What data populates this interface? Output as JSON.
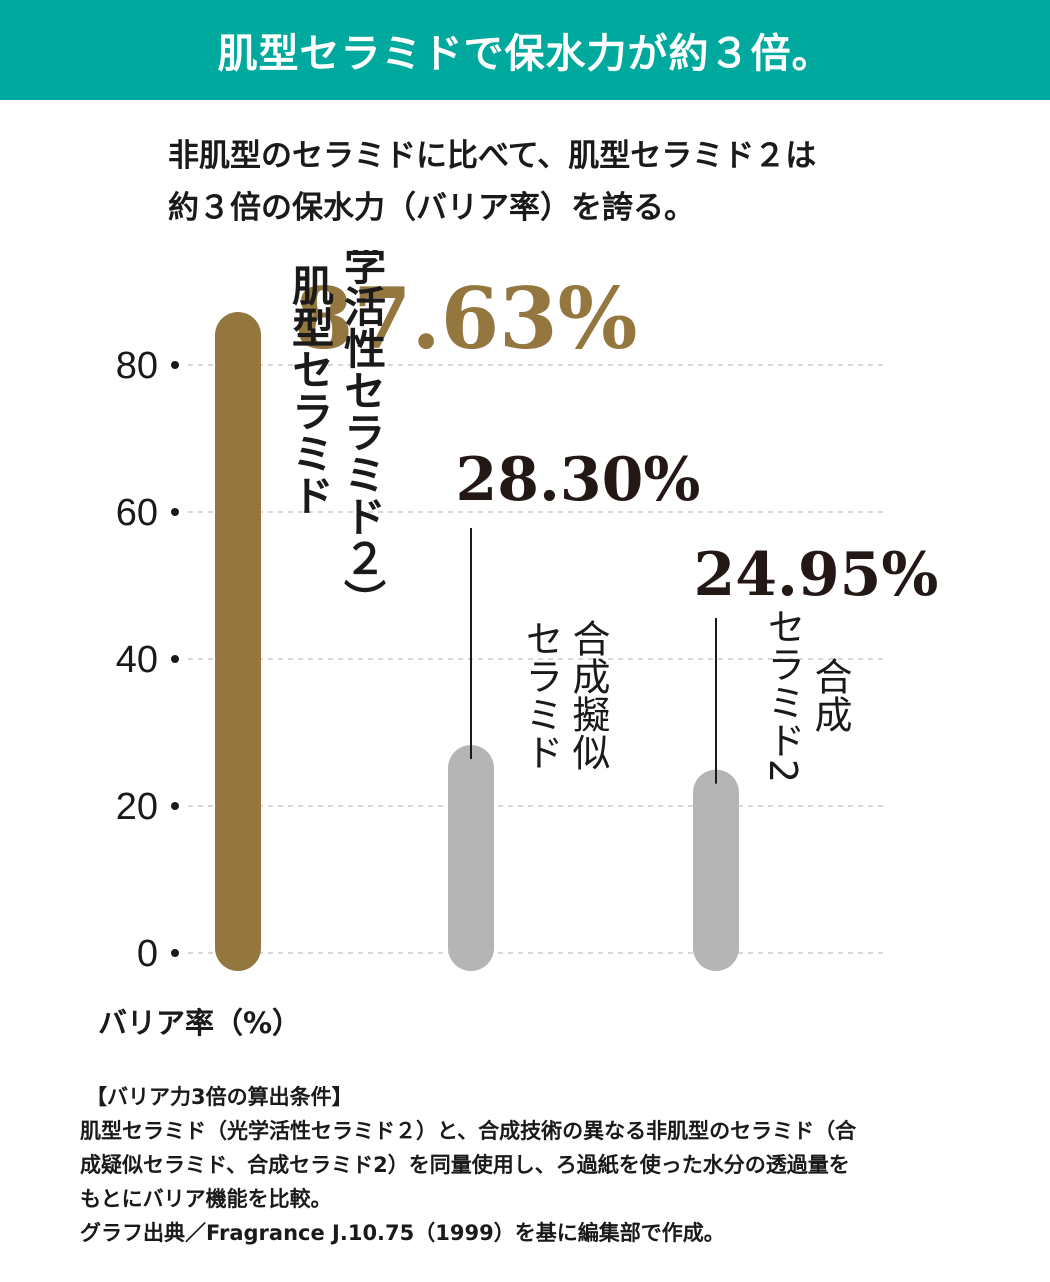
{
  "header": {
    "title": "肌型セラミドで保水力が約３倍。",
    "background": "#00a99d"
  },
  "subtitle": {
    "line1": "非肌型のセラミドに比べて、肌型セラミド２は",
    "line2": "約３倍の保水力（バリア率）を誇る。"
  },
  "chart_data": {
    "type": "bar",
    "ylabel": "バリア率（%）",
    "ylim": [
      0,
      80
    ],
    "yticks": [
      0,
      20,
      40,
      60,
      80
    ],
    "grid": true,
    "legend": "none",
    "series": [
      {
        "value": 87.63,
        "value_label": "87.63%",
        "label_lines": [
          "肌型セラミド",
          "（光学活性セラミド２）"
        ],
        "color": "#94763f",
        "value_color": "#94763f"
      },
      {
        "value": 28.3,
        "value_label": "28.30%",
        "label_lines": [
          "合成擬似",
          "セラミド"
        ],
        "color": "#b5b5b5",
        "value_color": "#231815"
      },
      {
        "value": 24.95,
        "value_label": "24.95%",
        "label_lines": [
          "合成",
          "セラミド2"
        ],
        "color": "#b5b5b5",
        "value_color": "#231815"
      }
    ]
  },
  "notes": {
    "heading": "【バリア力3倍の算出条件】",
    "line1": "肌型セラミド（光学活性セラミド２）と、合成技術の異なる非肌型のセラミド（合",
    "line2": "成疑似セラミド、合成セラミド2）を同量使用し、ろ過紙を使った水分の透過量を",
    "line3": "もとにバリア機能を比較。",
    "line4": "グラフ出典／Fragrance J.10.75（1999）を基に編集部で作成。"
  }
}
